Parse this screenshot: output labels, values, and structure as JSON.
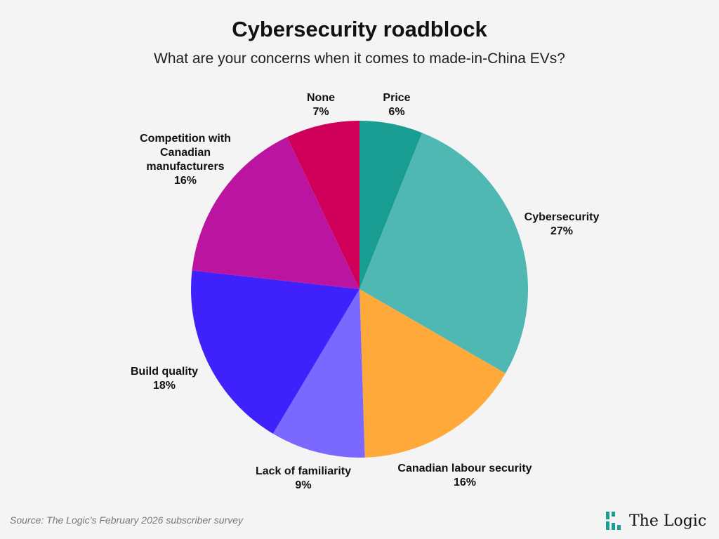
{
  "chart_data": {
    "type": "pie",
    "title": "Cybersecurity roadblock",
    "subtitle": "What are your concerns when it comes to made-in-China EVs?",
    "start": "top, clockwise",
    "slices": [
      {
        "label": "Price",
        "value": 6,
        "pct": "6%",
        "color": "#1a9e93"
      },
      {
        "label": "Cybersecurity",
        "value": 27,
        "pct": "27%",
        "color": "#4fb8b3"
      },
      {
        "label": "Canadian labour security",
        "value": 16,
        "pct": "16%",
        "color": "#ffa93a"
      },
      {
        "label": "Lack of familiarity",
        "value": 9,
        "pct": "9%",
        "color": "#7b69ff"
      },
      {
        "label": "Build quality",
        "value": 18,
        "pct": "18%",
        "color": "#3f22fb"
      },
      {
        "label": "Competition with\nCanadian\nmanufacturers",
        "value": 16,
        "pct": "16%",
        "color": "#bb14a0"
      },
      {
        "label": "None",
        "value": 7,
        "pct": "7%",
        "color": "#d0005a"
      }
    ]
  },
  "footer": {
    "source_prefix": "Source: The Logic’s ",
    "source_rest": "February 2026 subscriber survey",
    "logo_text": "The Logic",
    "logo_color": "#1a9e93"
  }
}
